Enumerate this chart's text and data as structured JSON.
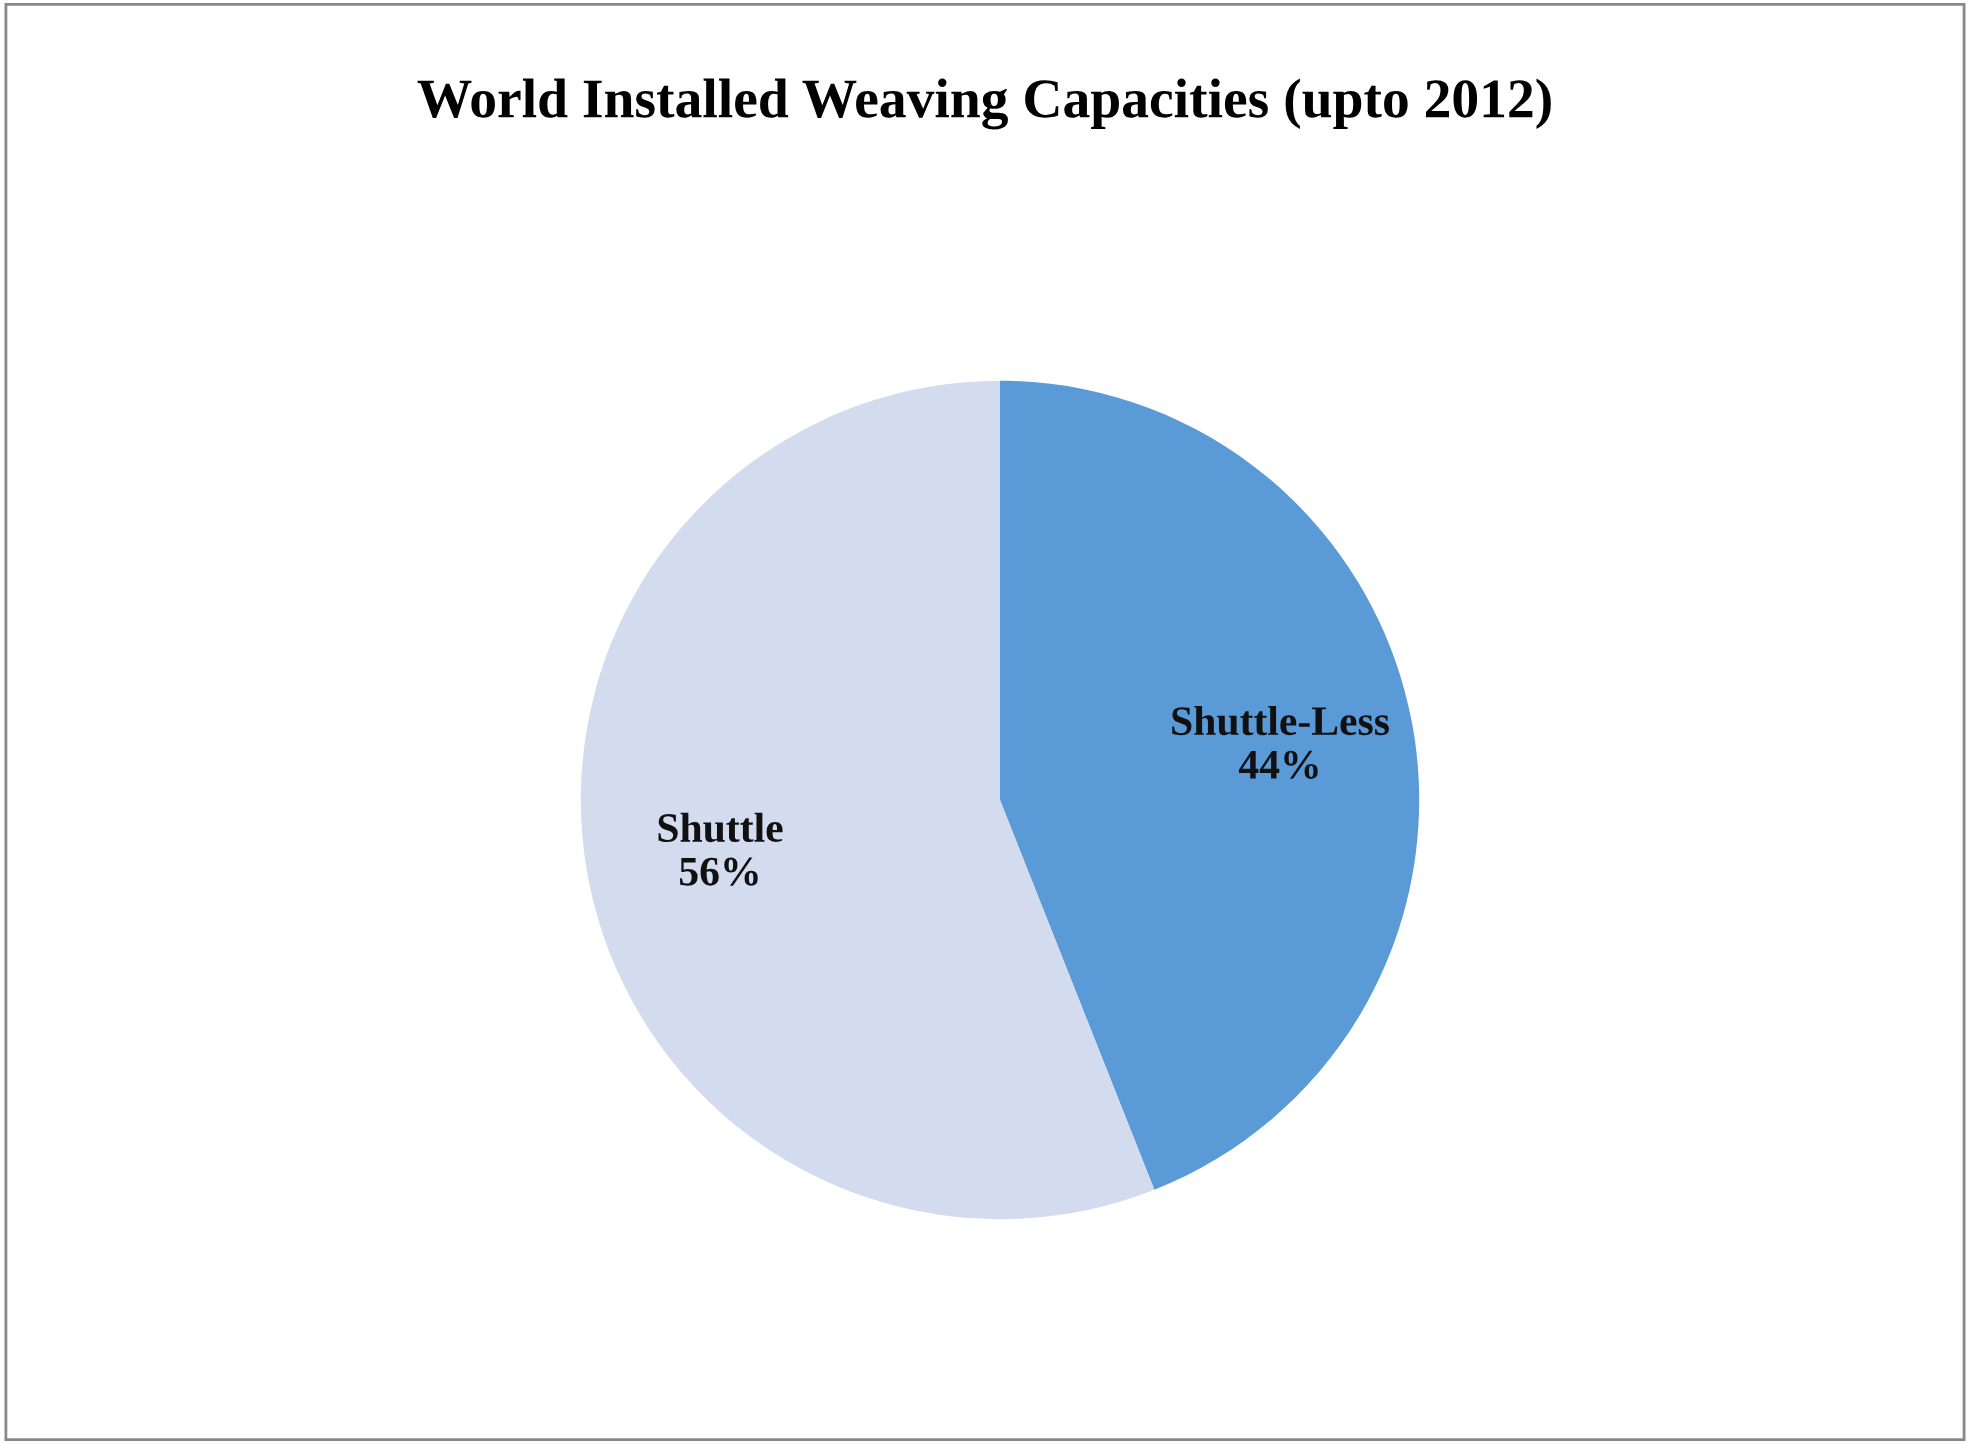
{
  "chart_data": {
    "type": "pie",
    "title": "World Installed Weaving Capacities (upto 2012)",
    "categories": [
      "Shuttle-Less",
      "Shuttle"
    ],
    "values": [
      44,
      56
    ],
    "colors": [
      "#5a9ad6",
      "#d3dcef"
    ],
    "value_labels": [
      "44%",
      "56%"
    ],
    "legend": false
  }
}
